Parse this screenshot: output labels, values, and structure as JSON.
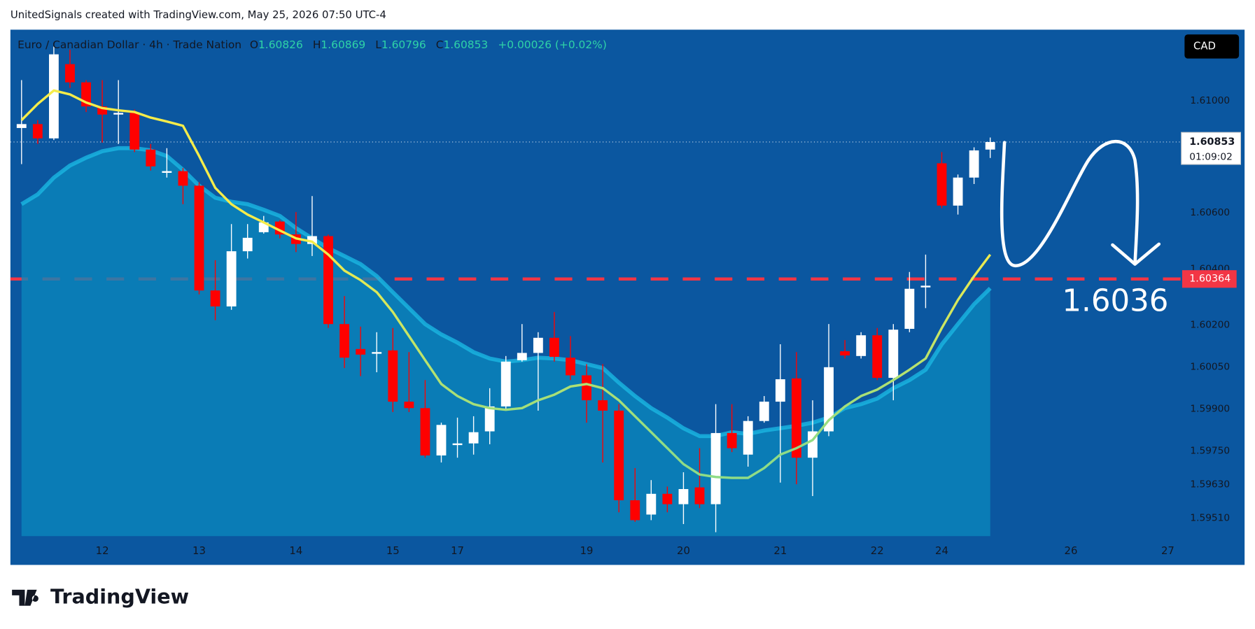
{
  "header": {
    "credit": "UnitedSignals created with TradingView.com, May 25, 2026 07:50 UTC-4",
    "symbol": "Euro / Canadian Dollar · 4h · Trade Nation",
    "o": "O",
    "h": "H",
    "l": "L",
    "c": "C",
    "change": "+0.00026 (+0.02%)",
    "currency": "CAD",
    "countdown": "01:09:02"
  },
  "footer": {
    "brand": "TradingView"
  },
  "chart_data": {
    "type": "candlestick",
    "x": [
      0,
      1,
      2,
      3,
      4,
      5,
      6,
      7,
      8,
      9,
      10,
      11,
      12,
      13,
      14,
      15,
      16,
      17,
      18,
      19,
      20,
      21,
      22,
      23,
      24,
      25,
      26,
      27,
      28,
      29,
      30,
      31,
      32,
      33,
      34,
      35,
      36,
      37,
      38,
      39,
      40,
      41,
      42,
      43,
      44,
      45,
      46,
      47,
      48,
      49,
      50,
      51,
      52,
      53,
      54,
      55,
      56,
      57,
      58,
      59,
      60
    ],
    "open": [
      1.60903,
      1.60917,
      1.60866,
      1.61131,
      1.61066,
      1.6098,
      1.60951,
      1.60957,
      1.60826,
      1.60743,
      1.60749,
      1.60697,
      1.60323,
      1.60266,
      1.60463,
      1.60531,
      1.60569,
      1.60523,
      1.60489,
      1.60517,
      1.60203,
      1.60114,
      1.60097,
      1.60109,
      1.59926,
      1.59903,
      1.59734,
      1.59771,
      1.59777,
      1.5982,
      1.59909,
      1.60074,
      1.601,
      1.60154,
      1.60083,
      1.6002,
      1.59931,
      1.59894,
      1.59574,
      1.59523,
      1.59597,
      1.5956,
      1.5962,
      1.5956,
      1.59814,
      1.59737,
      1.59857,
      1.59926,
      1.60009,
      1.59726,
      1.5982,
      1.60106,
      1.60089,
      1.60163,
      1.60011,
      1.60186,
      1.60334,
      1.60777,
      1.60626,
      1.60726,
      1.60826
    ],
    "high": [
      1.61074,
      1.60931,
      1.61194,
      1.61183,
      1.61074,
      1.61074,
      1.61074,
      1.60969,
      1.60846,
      1.60831,
      1.6076,
      1.60709,
      1.60431,
      1.6056,
      1.6056,
      1.60589,
      1.60574,
      1.60603,
      1.6066,
      1.60523,
      1.60303,
      1.60194,
      1.60174,
      1.60189,
      1.60103,
      1.60003,
      1.59851,
      1.59869,
      1.59874,
      1.59974,
      1.60089,
      1.60203,
      1.60174,
      1.60246,
      1.6016,
      1.6006,
      1.6006,
      1.59917,
      1.59689,
      1.59646,
      1.59623,
      1.59674,
      1.5976,
      1.59917,
      1.59917,
      1.59874,
      1.59946,
      1.60131,
      1.60103,
      1.59931,
      1.60203,
      1.60146,
      1.60174,
      1.60189,
      1.60203,
      1.60389,
      1.60451,
      1.60817,
      1.60737,
      1.60834,
      1.60869
    ],
    "low": [
      1.60774,
      1.60846,
      1.6086,
      1.61046,
      1.6096,
      1.60851,
      1.60846,
      1.60817,
      1.60751,
      1.60726,
      1.60631,
      1.60309,
      1.60217,
      1.60254,
      1.60437,
      1.60526,
      1.60509,
      1.6046,
      1.60446,
      1.60189,
      1.60046,
      1.60017,
      1.60031,
      1.59889,
      1.59889,
      1.59726,
      1.59709,
      1.59726,
      1.59737,
      1.59774,
      1.59897,
      1.60069,
      1.59894,
      1.60069,
      1.60003,
      1.59851,
      1.59709,
      1.59531,
      1.59497,
      1.59503,
      1.59531,
      1.59489,
      1.59546,
      1.5946,
      1.59746,
      1.59694,
      1.59851,
      1.59637,
      1.59631,
      1.59589,
      1.59803,
      1.6008,
      1.6008,
      1.60003,
      1.59931,
      1.60174,
      1.6026,
      1.60617,
      1.60594,
      1.60703,
      1.60796
    ],
    "close": [
      1.60917,
      1.60866,
      1.61166,
      1.61066,
      1.6098,
      1.60951,
      1.60957,
      1.60826,
      1.60766,
      1.60749,
      1.60697,
      1.60323,
      1.60266,
      1.60463,
      1.60511,
      1.60566,
      1.60523,
      1.60489,
      1.60517,
      1.60203,
      1.60083,
      1.60094,
      1.60103,
      1.59926,
      1.59903,
      1.59734,
      1.59843,
      1.59777,
      1.59817,
      1.59909,
      1.60069,
      1.601,
      1.60154,
      1.60086,
      1.6002,
      1.59931,
      1.59894,
      1.59574,
      1.59503,
      1.59597,
      1.5956,
      1.59614,
      1.5956,
      1.59814,
      1.5976,
      1.59857,
      1.59926,
      1.60006,
      1.59726,
      1.5982,
      1.60049,
      1.60091,
      1.60163,
      1.60011,
      1.60183,
      1.60329,
      1.6034,
      1.60626,
      1.60726,
      1.60823,
      1.60853
    ],
    "up_color": "#ffffff",
    "down_color": "#ff0000",
    "line": {
      "color": "#f5ec4a",
      "low_color": "#8fdc86",
      "values": [
        1.60931,
        1.60989,
        1.61037,
        1.61023,
        1.60994,
        1.60974,
        1.60966,
        1.6096,
        1.6094,
        1.60926,
        1.60911,
        1.60803,
        1.60689,
        1.60631,
        1.60594,
        1.60566,
        1.60537,
        1.60509,
        1.60497,
        1.60451,
        1.60394,
        1.6036,
        1.60317,
        1.60246,
        1.6016,
        1.60074,
        1.59989,
        1.59946,
        1.59917,
        1.59903,
        1.59897,
        1.59903,
        1.59931,
        1.59951,
        1.5998,
        1.59989,
        1.59974,
        1.59931,
        1.59874,
        1.59817,
        1.5976,
        1.59703,
        1.59666,
        1.59657,
        1.59654,
        1.59654,
        1.59689,
        1.59737,
        1.5976,
        1.59789,
        1.5986,
        1.59909,
        1.59946,
        1.59969,
        1.60003,
        1.6004,
        1.6008,
        1.60189,
        1.60289,
        1.60374,
        1.60451
      ]
    },
    "area": {
      "color": "#0a86bc",
      "edge_color": "#1ab6e2",
      "values": [
        1.60631,
        1.60666,
        1.60726,
        1.60769,
        1.60797,
        1.6082,
        1.60831,
        1.60831,
        1.60823,
        1.60803,
        1.60754,
        1.60697,
        1.60654,
        1.6064,
        1.60631,
        1.60611,
        1.60589,
        1.60546,
        1.60509,
        1.60474,
        1.60446,
        1.60417,
        1.60374,
        1.60317,
        1.6026,
        1.60203,
        1.60166,
        1.60137,
        1.60103,
        1.6008,
        1.60069,
        1.60074,
        1.60083,
        1.6008,
        1.60074,
        1.6006,
        1.60046,
        1.59994,
        1.59946,
        1.59903,
        1.59869,
        1.59831,
        1.59803,
        1.59803,
        1.59817,
        1.59811,
        1.59823,
        1.59831,
        1.5984,
        1.59851,
        1.59869,
        1.59903,
        1.59917,
        1.59937,
        1.59974,
        1.60003,
        1.6004,
        1.60131,
        1.60203,
        1.60274,
        1.60331
      ]
    },
    "hline": {
      "value": 1.60364,
      "color": "#f23645"
    },
    "annotation": "1.6036",
    "xlim": [
      -0.69,
      71.89
    ],
    "ylim": [
      1.59446,
      1.61254
    ],
    "xticks": [
      {
        "value": 5,
        "label": "12"
      },
      {
        "value": 11,
        "label": "13"
      },
      {
        "value": 17,
        "label": "14"
      },
      {
        "value": 23,
        "label": "15"
      },
      {
        "value": 27,
        "label": "17"
      },
      {
        "value": 35,
        "label": "19"
      },
      {
        "value": 41,
        "label": "20"
      },
      {
        "value": 47,
        "label": "21"
      },
      {
        "value": 53,
        "label": "22"
      },
      {
        "value": 57,
        "label": "24"
      },
      {
        "value": 65,
        "label": "26"
      },
      {
        "value": 71,
        "label": "27"
      }
    ],
    "yticks": [
      {
        "value": 1.61,
        "label": "1.61000"
      },
      {
        "value": 1.606,
        "label": "1.60600"
      },
      {
        "value": 1.604,
        "label": "1.60400"
      },
      {
        "value": 1.602,
        "label": "1.60200"
      },
      {
        "value": 1.6005,
        "label": "1.60050"
      },
      {
        "value": 1.599,
        "label": "1.59900"
      },
      {
        "value": 1.5975,
        "label": "1.59750"
      },
      {
        "value": 1.5963,
        "label": "1.59630"
      },
      {
        "value": 1.5951,
        "label": "1.59510"
      }
    ],
    "grid": false
  }
}
